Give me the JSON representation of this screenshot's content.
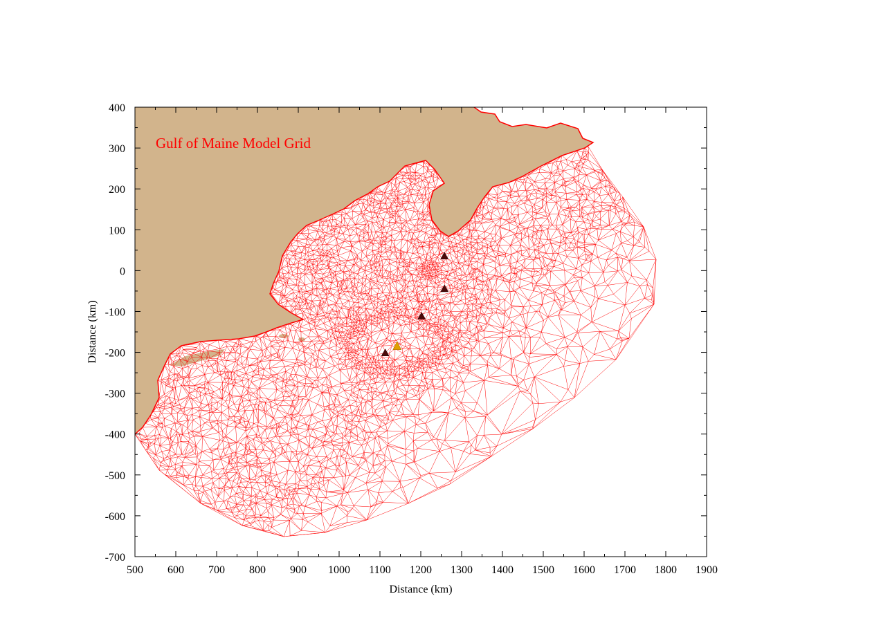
{
  "map": {
    "title": "Gulf of Maine Model Grid",
    "xlabel": "Distance (km)",
    "ylabel": "Distance (km)",
    "x_ticks": [
      500,
      600,
      700,
      800,
      900,
      1000,
      1100,
      1200,
      1300,
      1400,
      1500,
      1600,
      1700,
      1800,
      1900
    ],
    "y_ticks": [
      400,
      300,
      200,
      100,
      0,
      -100,
      -200,
      -300,
      -400,
      -500,
      -600,
      -700
    ],
    "xlim": [
      500,
      1900
    ],
    "ylim": [
      -700,
      400
    ],
    "colors": {
      "land": "#d2b48c",
      "grid": "#ff0000",
      "title": "#ff0000",
      "station_marker": "#4a0a0a",
      "highlight_marker": "#e0a000"
    },
    "stations": [
      {
        "x": 1258,
        "y": 35
      },
      {
        "x": 1258,
        "y": -45
      },
      {
        "x": 1202,
        "y": -112
      },
      {
        "x": 1113,
        "y": -202
      }
    ],
    "highlight_station": {
      "x": 1142,
      "y": -185
    }
  }
}
